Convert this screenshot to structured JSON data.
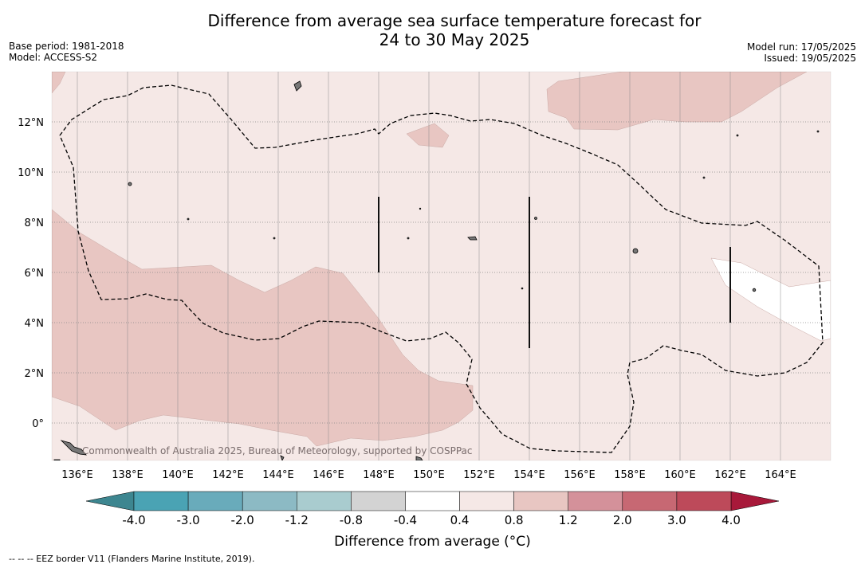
{
  "title_line1": "Difference from average sea surface temperature forecast for",
  "title_line2": "24 to 30 May 2025",
  "base_period": "Base period: 1981-2018",
  "model": "Model: ACCESS-S2",
  "model_run": "Model run: 17/05/2025",
  "issued": "Issued: 19/05/2025",
  "attribution": "Commonwealth of Australia 2025, Bureau of Meteorology, supported by COSPPac",
  "footnote": "-- -- -- EEZ border V11 (Flanders Marine Institute, 2019).",
  "colorbar": {
    "label": "Difference from average (°C)",
    "ticks": [
      "-4.0",
      "-3.0",
      "-2.0",
      "-1.2",
      "-0.8",
      "-0.4",
      "0.4",
      "0.8",
      "1.2",
      "2.0",
      "3.0",
      "4.0"
    ],
    "colors": [
      "#4aa3b4",
      "#69abbb",
      "#8cbac4",
      "#a9cccf",
      "#d3d3d3",
      "#ffffff",
      "#f5e8e6",
      "#e8c6c2",
      "#d4919a",
      "#c76873",
      "#bd4a5a"
    ],
    "extend_low_color": "#3d8690",
    "extend_high_color": "#a8193a"
  },
  "map": {
    "lon_ticks": [
      "136°E",
      "138°E",
      "140°E",
      "142°E",
      "144°E",
      "146°E",
      "148°E",
      "150°E",
      "152°E",
      "154°E",
      "156°E",
      "158°E",
      "160°E",
      "162°E",
      "164°E"
    ],
    "lat_ticks": [
      "12°N",
      "10°N",
      "8°N",
      "6°N",
      "4°N",
      "2°N",
      "0°"
    ],
    "background_color": "#f5e8e6",
    "warm_color": "#e8c6c2",
    "neutral_color": "#ffffff"
  }
}
